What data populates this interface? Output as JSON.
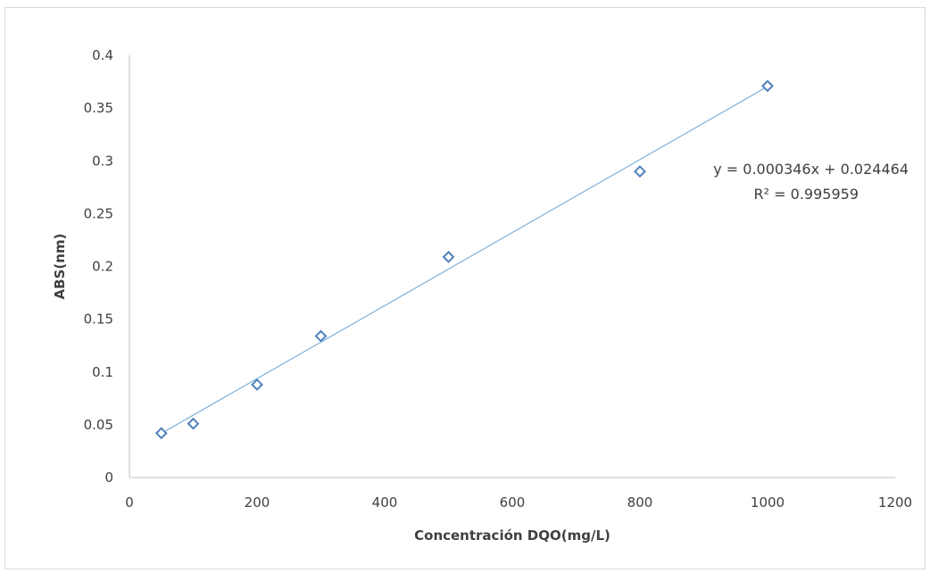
{
  "chart_data": {
    "type": "scatter",
    "xlabel": "Concentración DQO(mg/L)",
    "ylabel": "ABS(nm)",
    "xlim": [
      0,
      1200
    ],
    "ylim": [
      0,
      0.4
    ],
    "xticks": [
      0,
      200,
      400,
      600,
      800,
      1000,
      1200
    ],
    "yticks": [
      0,
      0.05,
      0.1,
      0.15,
      0.2,
      0.25,
      0.3,
      0.35,
      0.4
    ],
    "x_tick_labels": [
      "0",
      "200",
      "400",
      "600",
      "800",
      "1000",
      "1200"
    ],
    "y_tick_labels": [
      "0",
      "0.05",
      "0.1",
      "0.15",
      "0.2",
      "0.25",
      "0.3",
      "0.35",
      "0.4"
    ],
    "grid": false,
    "series": [
      {
        "x": [
          50,
          100,
          200,
          300,
          500,
          800,
          1000
        ],
        "y": [
          0.042,
          0.051,
          0.088,
          0.134,
          0.209,
          0.29,
          0.371
        ],
        "marker": "diamond",
        "color": "#4f81bd"
      }
    ],
    "trendline": {
      "slope": 0.000346,
      "intercept": 0.024464,
      "x_range": [
        50,
        1000
      ],
      "color": "#7fb2dc",
      "equation_label": "y = 0.000346x + 0.024464",
      "r2_label": "R² = 0.995959"
    }
  }
}
